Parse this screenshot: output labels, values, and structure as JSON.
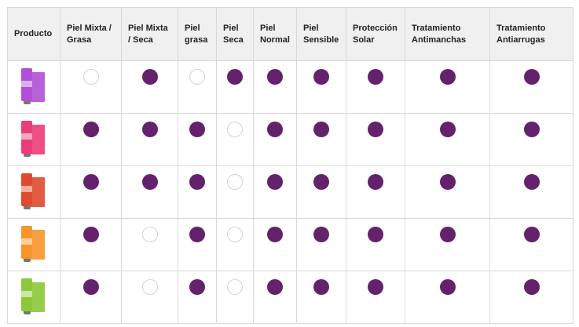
{
  "table": {
    "columns": [
      {
        "label": "Producto"
      },
      {
        "label": "Piel Mixta / Grasa"
      },
      {
        "label": "Piel Mixta / Seca"
      },
      {
        "label": "Piel grasa"
      },
      {
        "label": "Piel Seca"
      },
      {
        "label": "Piel Normal"
      },
      {
        "label": "Piel Sensible"
      },
      {
        "label": "Protección Solar"
      },
      {
        "label": "Tratamiento Antimanchas"
      },
      {
        "label": "Tratamiento Antiarrugas"
      }
    ],
    "rows": [
      {
        "product_color": "#b14fd6",
        "product_icon": "purple-bb-cream-product-icon",
        "marks": [
          false,
          true,
          false,
          true,
          true,
          true,
          true,
          true,
          true
        ]
      },
      {
        "product_color": "#ec3d76",
        "product_icon": "pink-bb-cream-product-icon",
        "marks": [
          true,
          true,
          true,
          false,
          true,
          true,
          true,
          true,
          true
        ]
      },
      {
        "product_color": "#de4a2f",
        "product_icon": "red-bb-cream-product-icon",
        "marks": [
          true,
          true,
          true,
          false,
          true,
          true,
          true,
          true,
          true
        ]
      },
      {
        "product_color": "#f7952a",
        "product_icon": "orange-bb-cream-product-icon",
        "marks": [
          true,
          false,
          true,
          false,
          true,
          true,
          true,
          true,
          true
        ]
      },
      {
        "product_color": "#8cc83a",
        "product_icon": "green-bb-cream-product-icon",
        "marks": [
          true,
          false,
          true,
          false,
          true,
          true,
          true,
          true,
          true
        ]
      }
    ]
  },
  "colors": {
    "check_filled": "#63226b",
    "header_bg": "#f0f0f0",
    "border": "#d9d9d9"
  }
}
